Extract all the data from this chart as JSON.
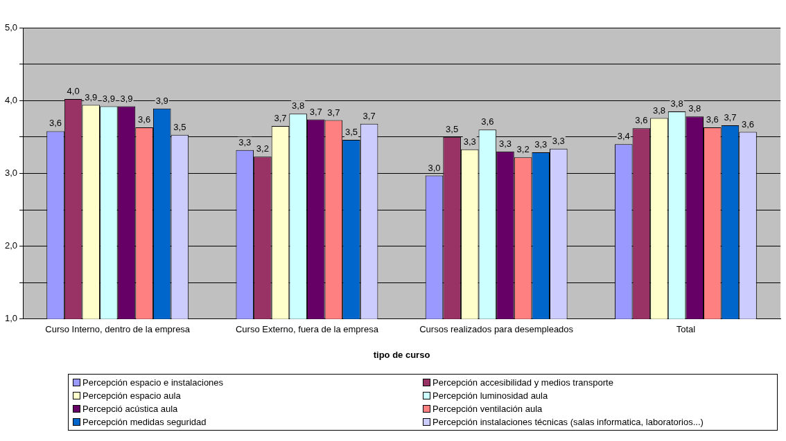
{
  "chart_data": {
    "type": "bar",
    "xlabel": "tipo de curso",
    "categories": [
      "Curso Interno, dentro de la empresa",
      "Curso Externo, fuera de la empresa",
      "Cursos realizados para desempleados",
      "Total"
    ],
    "series": [
      {
        "name": "Percepción espacio e instalaciones",
        "color": "#9999ff",
        "values": [
          3.58,
          3.32,
          2.97,
          3.4
        ],
        "value_labels": [
          "3,6",
          "3,3",
          "3,0",
          "3,4"
        ]
      },
      {
        "name": "Percepción accesibilidad y medios transporte",
        "color": "#993366",
        "values": [
          4.02,
          3.23,
          3.5,
          3.62
        ],
        "value_labels": [
          "4,0",
          "3,2",
          "3,5",
          "3,6"
        ]
      },
      {
        "name": "Percepción espacio aula",
        "color": "#ffffcc",
        "values": [
          3.94,
          3.65,
          3.33,
          3.76
        ],
        "value_labels": [
          "3,9",
          "3,7",
          "3,3",
          "3,8"
        ]
      },
      {
        "name": "Percepción luminosidad aula",
        "color": "#ccffff",
        "values": [
          3.92,
          3.82,
          3.6,
          3.85
        ],
        "value_labels": [
          "3,9",
          "3,8",
          "3,6",
          "3,8"
        ]
      },
      {
        "name": "Percepció acústica aula",
        "color": "#660066",
        "values": [
          3.92,
          3.74,
          3.3,
          3.78
        ],
        "value_labels": [
          "3,9",
          "3,7",
          "3,3",
          "3,8"
        ]
      },
      {
        "name": "Percepción ventilación aula",
        "color": "#ff8080",
        "values": [
          3.63,
          3.73,
          3.22,
          3.63
        ],
        "value_labels": [
          "3,6",
          "3,7",
          "3,2",
          "3,6"
        ]
      },
      {
        "name": "Percepción medidas seguridad",
        "color": "#0066cc",
        "values": [
          3.89,
          3.46,
          3.29,
          3.66
        ],
        "value_labels": [
          "3,9",
          "3,5",
          "3,3",
          "3,7"
        ]
      },
      {
        "name": "Percepción instalaciones técnicas (salas informatica, laboratorios...)",
        "color": "#ccccff",
        "values": [
          3.53,
          3.68,
          3.34,
          3.57
        ],
        "value_labels": [
          "3,5",
          "3,7",
          "3,3",
          "3,6"
        ]
      }
    ],
    "ylim": [
      1,
      5
    ],
    "yticks": [
      {
        "value": 1,
        "label": "1,0"
      },
      {
        "value": 1.5,
        "label": null
      },
      {
        "value": 2,
        "label": "2,0"
      },
      {
        "value": 2.5,
        "label": null
      },
      {
        "value": 3,
        "label": "3,0"
      },
      {
        "value": 3.5,
        "label": null
      },
      {
        "value": 4,
        "label": "4,0"
      },
      {
        "value": 4.5,
        "label": null
      },
      {
        "value": 5,
        "label": "5,0"
      }
    ],
    "grid": "y",
    "legend": "bottom"
  }
}
